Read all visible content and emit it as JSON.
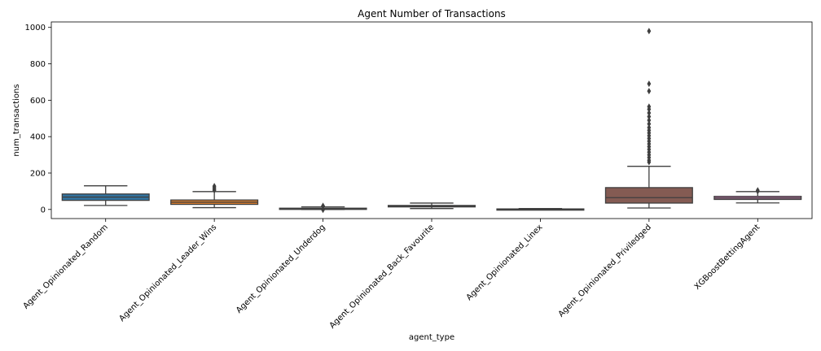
{
  "chart_data": {
    "type": "box",
    "title": "Agent Number of Transactions",
    "xlabel": "agent_type",
    "ylabel": "num_transactions",
    "ylim": [
      -50,
      1030
    ],
    "yticks": [
      0,
      200,
      400,
      600,
      800,
      1000
    ],
    "grid": false,
    "categories": [
      "Agent_Opinionated_Random",
      "Agent_Opinionated_Leader_Wins",
      "Agent_Opinionated_Underdog",
      "Agent_Opinionated_Back_Favourite",
      "Agent_Opinionated_Linex",
      "Agent_Opinionated_Priviledged",
      "XGBoostBettingAgent"
    ],
    "boxes": [
      {
        "whisker_low": 22,
        "q1": 50,
        "median": 68,
        "q3": 85,
        "whisker_high": 130,
        "outliers": [],
        "color": "#3274a1"
      },
      {
        "whisker_low": 10,
        "q1": 28,
        "median": 40,
        "q3": 52,
        "whisker_high": 98,
        "outliers": [
          105,
          112,
          120,
          128
        ],
        "color": "#e1812c"
      },
      {
        "whisker_low": 0,
        "q1": 2,
        "median": 4,
        "q3": 7,
        "whisker_high": 14,
        "outliers": [
          -2,
          18,
          20
        ],
        "color": "#3a923a"
      },
      {
        "whisker_low": 5,
        "q1": 14,
        "median": 18,
        "q3": 22,
        "whisker_high": 35,
        "outliers": [],
        "color": "#c03d3e"
      },
      {
        "whisker_low": 0,
        "q1": 1,
        "median": 2,
        "q3": 3,
        "whisker_high": 5,
        "outliers": [],
        "color": "#9372b2"
      },
      {
        "whisker_low": 8,
        "q1": 35,
        "median": 65,
        "q3": 120,
        "whisker_high": 237,
        "outliers": [
          260,
          270,
          285,
          300,
          315,
          330,
          345,
          360,
          375,
          390,
          405,
          420,
          435,
          450,
          470,
          490,
          510,
          530,
          550,
          565,
          650,
          690,
          980
        ],
        "color": "#845b53"
      },
      {
        "whisker_low": 36,
        "q1": 55,
        "median": 63,
        "q3": 72,
        "whisker_high": 98,
        "outliers": [
          100,
          105
        ],
        "color": "#d684bd"
      }
    ]
  }
}
